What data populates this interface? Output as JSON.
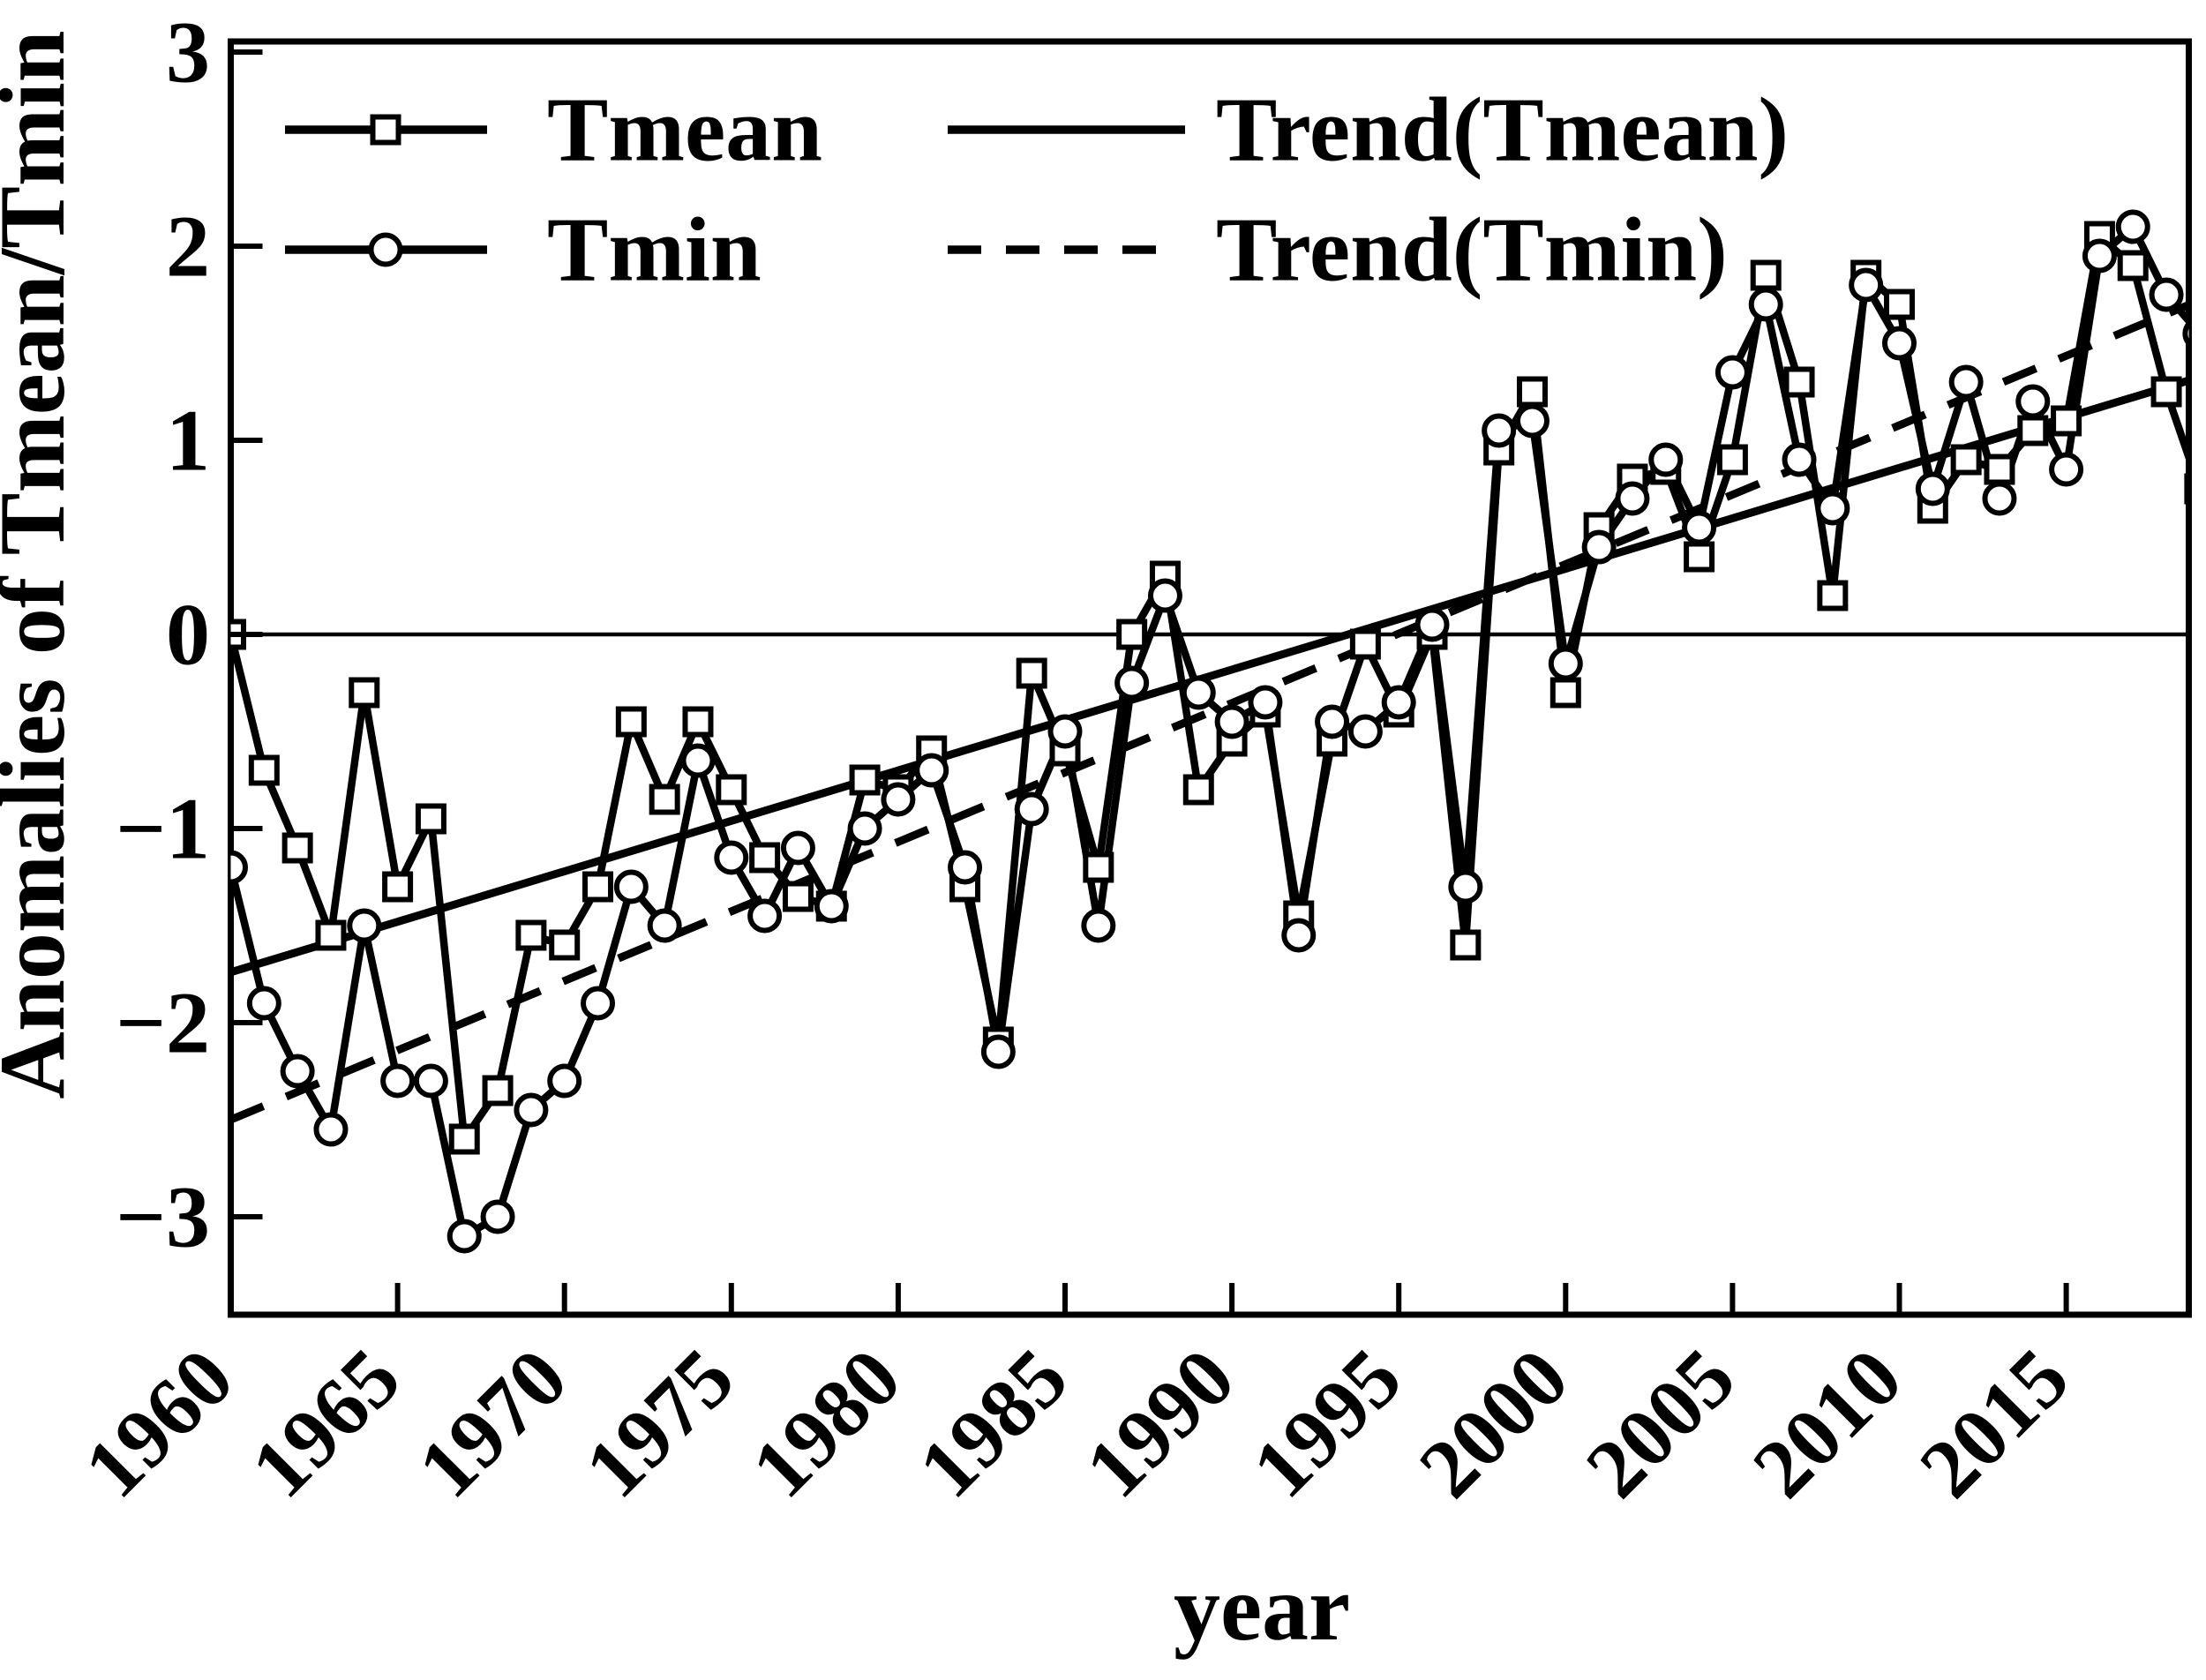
{
  "chart_data": {
    "type": "line",
    "title": "",
    "xlabel": "year",
    "ylabel": "Anomalies of Tmean/Tmin",
    "grid": false,
    "zero_line": true,
    "legend_position": "top-left",
    "colors": {
      "foreground": "#000000",
      "background": "#ffffff"
    },
    "xlim": [
      1960,
      2018.7
    ],
    "ylim": [
      -3.5,
      3.05
    ],
    "x_tick_years": [
      1960,
      1965,
      1970,
      1975,
      1980,
      1985,
      1990,
      1995,
      2000,
      2005,
      2010,
      2015
    ],
    "x_tick_labels": [
      "1960",
      "1965",
      "1970",
      "1975",
      "1980",
      "1985",
      "1990",
      "1995",
      "2000",
      "2005",
      "2010",
      "2015"
    ],
    "y_tick_values": [
      3,
      2,
      1,
      0,
      -1,
      -2,
      -3
    ],
    "y_tick_labels": [
      "3",
      "2",
      "1",
      "0",
      "−1",
      "−2",
      "−3"
    ],
    "years": [
      1960,
      1961,
      1962,
      1963,
      1964,
      1965,
      1966,
      1967,
      1968,
      1969,
      1970,
      1971,
      1972,
      1973,
      1974,
      1975,
      1976,
      1977,
      1978,
      1979,
      1980,
      1981,
      1982,
      1983,
      1984,
      1985,
      1986,
      1987,
      1988,
      1989,
      1990,
      1991,
      1992,
      1993,
      1994,
      1995,
      1996,
      1997,
      1998,
      1999,
      2000,
      2001,
      2002,
      2003,
      2004,
      2005,
      2006,
      2007,
      2008,
      2009,
      2010,
      2011,
      2012,
      2013,
      2014,
      2015,
      2016,
      2017,
      2018,
      2019
    ],
    "series": [
      {
        "name": "Tmean",
        "marker": "square",
        "values": [
          0.0,
          -0.7,
          -1.1,
          -1.55,
          -0.3,
          -1.3,
          -0.95,
          -2.6,
          -2.35,
          -1.55,
          -1.6,
          -1.3,
          -0.45,
          -0.85,
          -0.45,
          -0.8,
          -1.15,
          -1.35,
          -1.4,
          -0.75,
          -0.8,
          -0.6,
          -1.3,
          -2.1,
          -0.2,
          -0.6,
          -1.2,
          0.0,
          0.3,
          -0.8,
          -0.55,
          -0.4,
          -1.45,
          -0.55,
          -0.05,
          -0.4,
          0.0,
          -1.6,
          0.95,
          1.25,
          -0.3,
          0.55,
          0.8,
          0.85,
          0.4,
          0.9,
          1.85,
          1.3,
          0.2,
          1.85,
          1.7,
          0.65,
          0.9,
          0.85,
          1.05,
          1.1,
          2.05,
          1.9,
          1.25,
          0.75
        ]
      },
      {
        "name": "Tmin",
        "marker": "circle",
        "values": [
          -1.2,
          -1.9,
          -2.25,
          -2.55,
          -1.5,
          -2.3,
          -2.3,
          -3.1,
          -3.0,
          -2.45,
          -2.3,
          -1.9,
          -1.3,
          -1.5,
          -0.65,
          -1.15,
          -1.45,
          -1.1,
          -1.4,
          -1.0,
          -0.85,
          -0.7,
          -1.2,
          -2.15,
          -0.9,
          -0.5,
          -1.5,
          -0.25,
          0.2,
          -0.3,
          -0.45,
          -0.35,
          -1.55,
          -0.45,
          -0.5,
          -0.35,
          0.05,
          -1.3,
          1.05,
          1.1,
          -0.15,
          0.45,
          0.7,
          0.9,
          0.55,
          1.35,
          1.7,
          0.9,
          0.65,
          1.8,
          1.5,
          0.75,
          1.3,
          0.7,
          1.2,
          0.85,
          1.95,
          2.1,
          1.75,
          1.55
        ]
      }
    ],
    "trends": [
      {
        "name": "Trend(Tmean)",
        "style": "solid",
        "x_start": 1960,
        "y_start": -1.74,
        "x_end": 2018.7,
        "y_end": 1.31
      },
      {
        "name": "Trend(Tmin)",
        "style": "dashed",
        "x_start": 1960,
        "y_start": -2.5,
        "x_end": 2018.7,
        "y_end": 1.7
      }
    ],
    "legend_entries": [
      {
        "label": "Tmean",
        "sample": "line-square"
      },
      {
        "label": "Tmin",
        "sample": "line-circle"
      },
      {
        "label": "Trend(Tmean)",
        "sample": "solid-line"
      },
      {
        "label": "Trend(Tmin)",
        "sample": "dashed-line"
      }
    ]
  }
}
